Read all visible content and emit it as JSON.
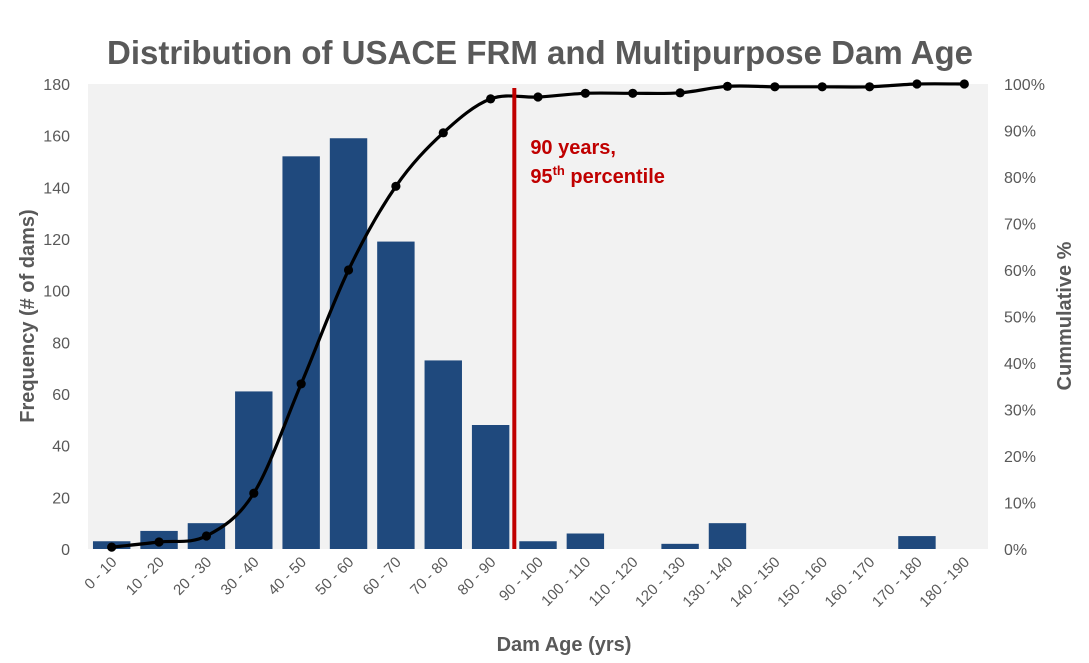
{
  "colors": {
    "bar": "#1F497D",
    "line": "#000000",
    "marker": "#000000",
    "reference_line": "#C00000",
    "annotation_text": "#C00000",
    "plot_background": "#F2F2F2",
    "text": "#595959"
  },
  "chart_data": {
    "type": "bar",
    "title": "Distribution of USACE FRM and Multipurpose Dam Age",
    "xlabel": "Dam Age (yrs)",
    "ylabel": "Frequency (# of dams)",
    "y2label": "Cummulative %",
    "categories": [
      "0 - 10",
      "10 - 20",
      "20 - 30",
      "30 - 40",
      "40 - 50",
      "50 - 60",
      "60 - 70",
      "70 - 80",
      "80 - 90",
      "90 - 100",
      "100 - 110",
      "110 - 120",
      "120 - 130",
      "130 - 140",
      "140 - 150",
      "150 - 160",
      "160 - 170",
      "170 - 180",
      "180 - 190"
    ],
    "ylim": [
      0,
      180
    ],
    "y_ticks": [
      0,
      20,
      40,
      60,
      80,
      100,
      120,
      140,
      160,
      180
    ],
    "y2lim": [
      0,
      100
    ],
    "y2_ticks": [
      "0%",
      "10%",
      "20%",
      "30%",
      "40%",
      "50%",
      "60%",
      "70%",
      "80%",
      "90%",
      "100%"
    ],
    "grid": false,
    "legend": "none",
    "series": [
      {
        "type": "bar",
        "axis": "left",
        "values": [
          3,
          7,
          10,
          61,
          152,
          159,
          119,
          73,
          48,
          3,
          6,
          0,
          2,
          10,
          0,
          0,
          0,
          5,
          0
        ]
      },
      {
        "type": "line",
        "axis": "right",
        "smooth": true,
        "markers": true,
        "values": [
          0.4,
          1.5,
          2.8,
          12.0,
          35.5,
          60.0,
          78.0,
          89.5,
          96.8,
          97.2,
          98.0,
          98.0,
          98.1,
          99.5,
          99.4,
          99.4,
          99.4,
          100.0,
          100.0
        ]
      }
    ],
    "annotation": {
      "x_value": 90,
      "line1": "90 years,",
      "line2_number": "95",
      "line2_sup": "th",
      "line2_rest": " percentile"
    }
  }
}
